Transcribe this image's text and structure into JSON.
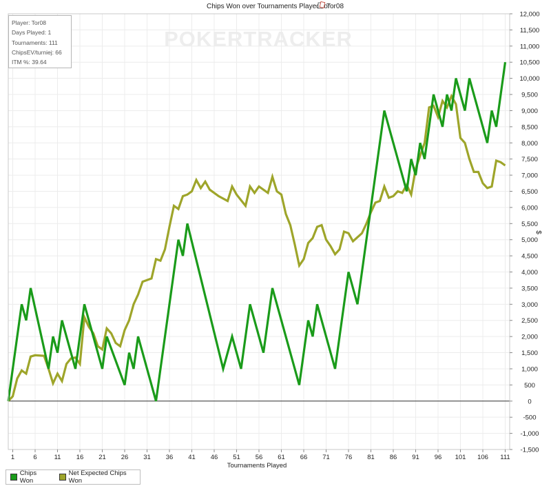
{
  "chart_data": {
    "type": "line",
    "title": "Chips Won over Tournaments Played for",
    "title_player": "Tor08",
    "title_icon": "poker-cards-icon",
    "watermark": "POKERTRACKER",
    "xlabel": "Tournaments Played",
    "ylabel": "$",
    "xlim": [
      0,
      112
    ],
    "ylim": [
      -1500,
      12000
    ],
    "grid": true,
    "legend_position": "bottom-left",
    "x_ticks": [
      1,
      6,
      11,
      16,
      21,
      26,
      31,
      36,
      41,
      46,
      51,
      56,
      61,
      66,
      71,
      76,
      81,
      86,
      91,
      96,
      101,
      106,
      111
    ],
    "y_ticks": [
      {
        "v": -1500,
        "label": "-1,500"
      },
      {
        "v": -1000,
        "label": "-1,000"
      },
      {
        "v": -500,
        "label": "-500"
      },
      {
        "v": 0,
        "label": "0"
      },
      {
        "v": 500,
        "label": "500"
      },
      {
        "v": 1000,
        "label": "1,000"
      },
      {
        "v": 1500,
        "label": "1,500"
      },
      {
        "v": 2000,
        "label": "2,000"
      },
      {
        "v": 2500,
        "label": "2,500"
      },
      {
        "v": 3000,
        "label": "3,000"
      },
      {
        "v": 3500,
        "label": "3,500"
      },
      {
        "v": 4000,
        "label": "4,000"
      },
      {
        "v": 4500,
        "label": "4,500"
      },
      {
        "v": 5000,
        "label": "5,000"
      },
      {
        "v": 5500,
        "label": "5,500"
      },
      {
        "v": 6000,
        "label": "6,000"
      },
      {
        "v": 6500,
        "label": "6,500"
      },
      {
        "v": 7000,
        "label": "7,000"
      },
      {
        "v": 7500,
        "label": "7,500"
      },
      {
        "v": 8000,
        "label": "8,000"
      },
      {
        "v": 8500,
        "label": "8,500"
      },
      {
        "v": 9000,
        "label": "9,000"
      },
      {
        "v": 9500,
        "label": "9,500"
      },
      {
        "v": 10000,
        "label": "10,000"
      },
      {
        "v": 10500,
        "label": "10,500"
      },
      {
        "v": 11000,
        "label": "11,000"
      },
      {
        "v": 11500,
        "label": "11,500"
      },
      {
        "v": 12000,
        "label": "12,000"
      }
    ],
    "series": [
      {
        "name": "Chips Won",
        "color": "#1a9b1a",
        "points": [
          [
            0,
            0
          ],
          [
            3,
            3000
          ],
          [
            4,
            2500
          ],
          [
            5,
            3500
          ],
          [
            9,
            1000
          ],
          [
            10,
            2000
          ],
          [
            11,
            1500
          ],
          [
            12,
            2500
          ],
          [
            15,
            1000
          ],
          [
            17,
            3000
          ],
          [
            21,
            1000
          ],
          [
            22,
            2000
          ],
          [
            26,
            500
          ],
          [
            27,
            1500
          ],
          [
            28,
            1000
          ],
          [
            29,
            2000
          ],
          [
            33,
            0
          ],
          [
            38,
            5000
          ],
          [
            39,
            4500
          ],
          [
            40,
            5500
          ],
          [
            48,
            1000
          ],
          [
            50,
            2000
          ],
          [
            52,
            1000
          ],
          [
            54,
            3000
          ],
          [
            57,
            1500
          ],
          [
            59,
            3500
          ],
          [
            65,
            500
          ],
          [
            67,
            2500
          ],
          [
            68,
            2000
          ],
          [
            69,
            3000
          ],
          [
            73,
            1000
          ],
          [
            76,
            4000
          ],
          [
            78,
            3000
          ],
          [
            84,
            9000
          ],
          [
            89,
            6500
          ],
          [
            90,
            7500
          ],
          [
            91,
            7000
          ],
          [
            92,
            8000
          ],
          [
            93,
            7500
          ],
          [
            95,
            9500
          ],
          [
            97,
            8500
          ],
          [
            98,
            9500
          ],
          [
            99,
            9000
          ],
          [
            100,
            10000
          ],
          [
            102,
            9000
          ],
          [
            103,
            10000
          ],
          [
            107,
            8000
          ],
          [
            108,
            9000
          ],
          [
            109,
            8500
          ],
          [
            111,
            10500
          ]
        ]
      },
      {
        "name": "Net Expected Chips Won",
        "color": "#9ea52a",
        "points": [
          [
            0,
            0
          ],
          [
            1,
            150
          ],
          [
            2,
            700
          ],
          [
            3,
            950
          ],
          [
            4,
            850
          ],
          [
            5,
            1380
          ],
          [
            6,
            1420
          ],
          [
            8,
            1400
          ],
          [
            9,
            1000
          ],
          [
            10,
            550
          ],
          [
            11,
            850
          ],
          [
            12,
            620
          ],
          [
            13,
            1150
          ],
          [
            14,
            1320
          ],
          [
            15,
            1350
          ],
          [
            16,
            1150
          ],
          [
            17,
            2600
          ],
          [
            18,
            2300
          ],
          [
            19,
            2100
          ],
          [
            20,
            1700
          ],
          [
            21,
            1600
          ],
          [
            22,
            2250
          ],
          [
            23,
            2100
          ],
          [
            24,
            1800
          ],
          [
            25,
            1700
          ],
          [
            26,
            2200
          ],
          [
            27,
            2500
          ],
          [
            28,
            3000
          ],
          [
            29,
            3300
          ],
          [
            30,
            3700
          ],
          [
            31,
            3750
          ],
          [
            32,
            3800
          ],
          [
            33,
            4400
          ],
          [
            34,
            4350
          ],
          [
            35,
            4700
          ],
          [
            36,
            5400
          ],
          [
            37,
            6050
          ],
          [
            38,
            5950
          ],
          [
            39,
            6350
          ],
          [
            40,
            6400
          ],
          [
            41,
            6500
          ],
          [
            42,
            6850
          ],
          [
            43,
            6600
          ],
          [
            44,
            6800
          ],
          [
            45,
            6550
          ],
          [
            47,
            6350
          ],
          [
            49,
            6200
          ],
          [
            50,
            6650
          ],
          [
            51,
            6400
          ],
          [
            53,
            6050
          ],
          [
            54,
            6650
          ],
          [
            55,
            6450
          ],
          [
            56,
            6650
          ],
          [
            58,
            6450
          ],
          [
            59,
            6950
          ],
          [
            60,
            6500
          ],
          [
            61,
            6400
          ],
          [
            62,
            5800
          ],
          [
            63,
            5450
          ],
          [
            64,
            4850
          ],
          [
            65,
            4200
          ],
          [
            66,
            4400
          ],
          [
            67,
            4900
          ],
          [
            68,
            5050
          ],
          [
            69,
            5400
          ],
          [
            70,
            5450
          ],
          [
            71,
            5000
          ],
          [
            72,
            4800
          ],
          [
            73,
            4550
          ],
          [
            74,
            4700
          ],
          [
            75,
            5250
          ],
          [
            76,
            5200
          ],
          [
            77,
            4950
          ],
          [
            79,
            5200
          ],
          [
            80,
            5500
          ],
          [
            81,
            5850
          ],
          [
            82,
            6150
          ],
          [
            83,
            6200
          ],
          [
            84,
            6650
          ],
          [
            85,
            6300
          ],
          [
            86,
            6350
          ],
          [
            87,
            6500
          ],
          [
            88,
            6450
          ],
          [
            89,
            6700
          ],
          [
            90,
            6400
          ],
          [
            91,
            7200
          ],
          [
            92,
            7600
          ],
          [
            93,
            8000
          ],
          [
            94,
            9100
          ],
          [
            95,
            9150
          ],
          [
            96,
            8800
          ],
          [
            97,
            9300
          ],
          [
            98,
            9100
          ],
          [
            99,
            9450
          ],
          [
            100,
            9200
          ],
          [
            101,
            8150
          ],
          [
            102,
            8000
          ],
          [
            103,
            7500
          ],
          [
            104,
            7100
          ],
          [
            105,
            7100
          ],
          [
            106,
            6750
          ],
          [
            107,
            6600
          ],
          [
            108,
            6650
          ],
          [
            109,
            7450
          ],
          [
            110,
            7400
          ],
          [
            111,
            7300
          ]
        ]
      }
    ]
  },
  "info": {
    "player": "Player: Tor08",
    "days": "Days Played: 1",
    "tournaments": "Tournaments: 111",
    "chipsev": "ChipsEV/turniej: 66",
    "itm": "ITM %: 39.64"
  }
}
